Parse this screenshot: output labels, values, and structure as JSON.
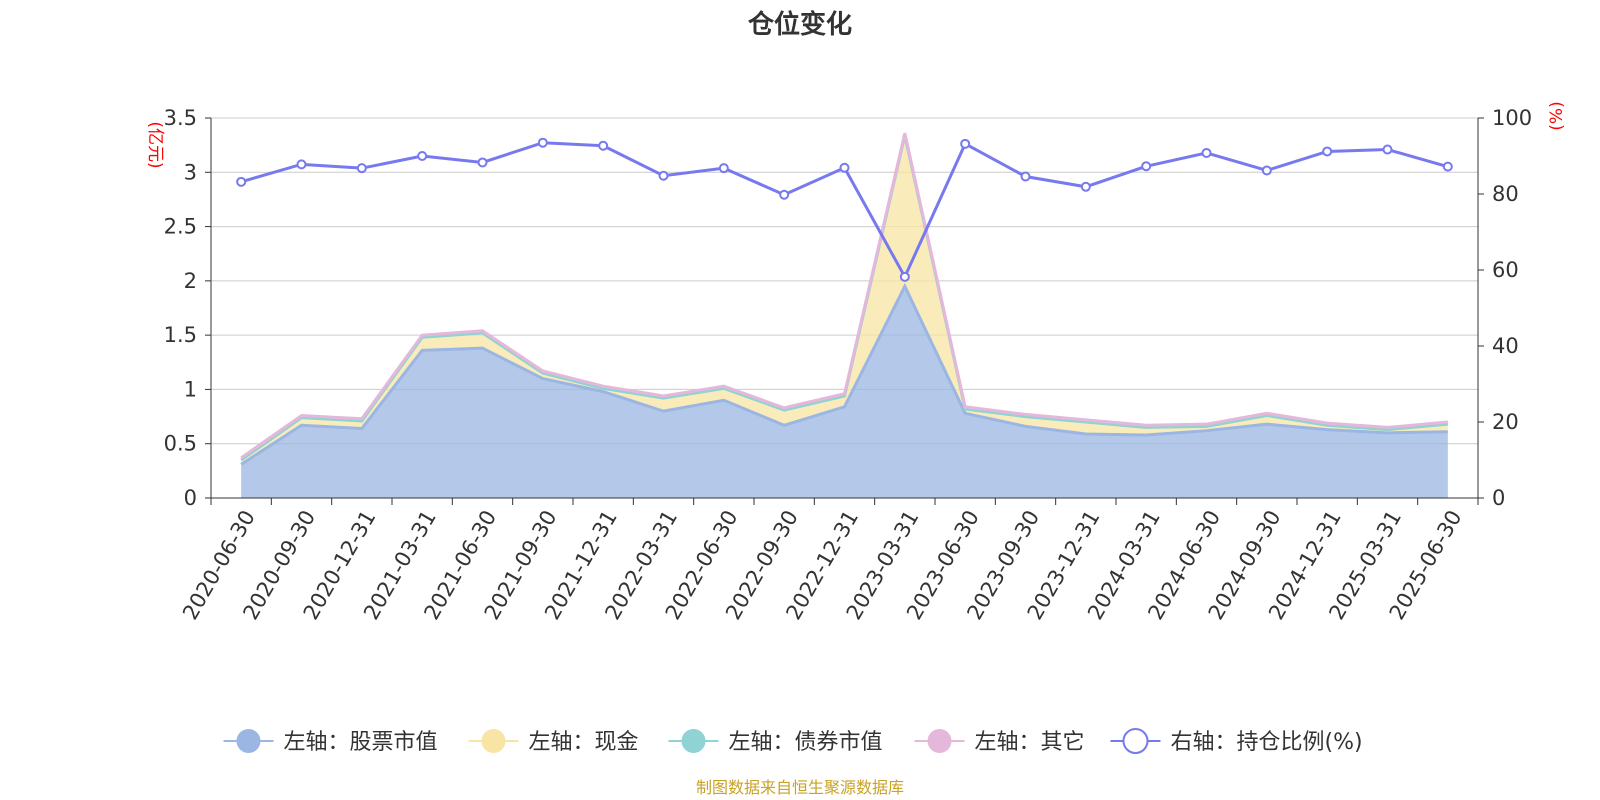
{
  "chart_data": {
    "type": "area",
    "title": "仓位变化",
    "left_unit": "(亿元)",
    "right_unit": "(%)",
    "categories": [
      "2020-06-30",
      "2020-09-30",
      "2020-12-31",
      "2021-03-31",
      "2021-06-30",
      "2021-09-30",
      "2021-12-31",
      "2022-03-31",
      "2022-06-30",
      "2022-09-30",
      "2022-12-31",
      "2023-03-31",
      "2023-06-30",
      "2023-09-30",
      "2023-12-31",
      "2024-03-31",
      "2024-06-30",
      "2024-09-30",
      "2024-12-31",
      "2025-03-31",
      "2025-06-30"
    ],
    "left_ylim": [
      0,
      3.5
    ],
    "left_ticks": [
      "0",
      "0.5",
      "1",
      "1.5",
      "2",
      "2.5",
      "3",
      "3.5"
    ],
    "right_ylim": [
      0,
      100
    ],
    "right_ticks": [
      "0",
      "20",
      "40",
      "60",
      "80",
      "100"
    ],
    "series": [
      {
        "name": "左轴：股票市值",
        "axis": "left",
        "stack": "total",
        "color": "#9bb6e3",
        "values": [
          0.31,
          0.67,
          0.64,
          1.36,
          1.38,
          1.1,
          0.98,
          0.8,
          0.9,
          0.67,
          0.84,
          1.95,
          0.78,
          0.66,
          0.59,
          0.58,
          0.62,
          0.68,
          0.63,
          0.6,
          0.61
        ]
      },
      {
        "name": "左轴：现金",
        "axis": "left",
        "stack": "total",
        "color": "#f8e4a4",
        "values": [
          0.04,
          0.07,
          0.07,
          0.12,
          0.14,
          0.05,
          0.03,
          0.12,
          0.11,
          0.14,
          0.1,
          1.39,
          0.04,
          0.09,
          0.11,
          0.07,
          0.04,
          0.08,
          0.04,
          0.03,
          0.07
        ]
      },
      {
        "name": "左轴：债券市值",
        "axis": "left",
        "stack": "total",
        "color": "#8fd3d4",
        "values": [
          0,
          0,
          0,
          0,
          0,
          0,
          0,
          0,
          0,
          0,
          0,
          0,
          0,
          0,
          0,
          0,
          0,
          0,
          0,
          0,
          0
        ]
      },
      {
        "name": "左轴：其它",
        "axis": "left",
        "stack": "total",
        "color": "#e5b7db",
        "values": [
          0.02,
          0.02,
          0.02,
          0.02,
          0.02,
          0.02,
          0.02,
          0.02,
          0.02,
          0.02,
          0.02,
          0.02,
          0.02,
          0.02,
          0.02,
          0.02,
          0.02,
          0.02,
          0.02,
          0.02,
          0.02
        ]
      },
      {
        "name": "右轴：持仓比例(%)",
        "axis": "right",
        "type": "line",
        "color": "#7779ee",
        "values": [
          83.2,
          87.8,
          86.8,
          90.0,
          88.3,
          93.5,
          92.7,
          84.8,
          86.8,
          79.8,
          86.9,
          58.2,
          93.2,
          84.6,
          81.9,
          87.3,
          90.8,
          86.2,
          91.2,
          91.7,
          87.2
        ]
      }
    ],
    "grid": true,
    "legend_position": "bottom"
  },
  "source": "制图数据来自恒生聚源数据库"
}
